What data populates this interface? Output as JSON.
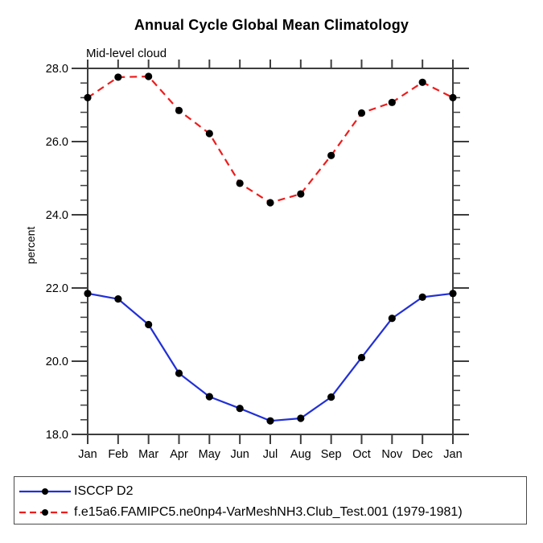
{
  "chart_data": {
    "type": "line",
    "title": "Annual Cycle Global Mean Climatology",
    "subtitle": "Mid-level cloud",
    "xlabel": "",
    "ylabel": "percent",
    "x_categories": [
      "Jan",
      "Feb",
      "Mar",
      "Apr",
      "May",
      "Jun",
      "Jul",
      "Aug",
      "Sep",
      "Oct",
      "Nov",
      "Dec",
      "Jan"
    ],
    "ylim": [
      18.0,
      28.0
    ],
    "ytick_values": [
      18.0,
      20.0,
      22.0,
      24.0,
      26.0,
      28.0
    ],
    "ytick_labels": [
      "18.0",
      "20.0",
      "22.0",
      "24.0",
      "26.0",
      "28.0"
    ],
    "y_minor_step": 0.4,
    "grid": false,
    "legend_position": "bottom-left-box",
    "axis_color": "#3d3d3d",
    "marker_color": "#000000",
    "series": [
      {
        "name": "ISCCP D2",
        "color": "#2230d6",
        "style": "solid",
        "marker": "filled-circle",
        "values": [
          21.85,
          21.7,
          21.0,
          19.67,
          19.03,
          18.71,
          18.37,
          18.44,
          19.02,
          20.1,
          21.17,
          21.75,
          21.85
        ]
      },
      {
        "name": "f.e15a6.FAMIPC5.ne0np4-VarMeshNH3.Club_Test.001 (1979-1981)",
        "color": "#ee1c1c",
        "style": "dashed",
        "marker": "filled-circle",
        "values": [
          27.2,
          27.76,
          27.78,
          26.85,
          26.22,
          24.86,
          24.33,
          24.57,
          25.62,
          26.78,
          27.07,
          27.62,
          27.2
        ]
      }
    ]
  }
}
